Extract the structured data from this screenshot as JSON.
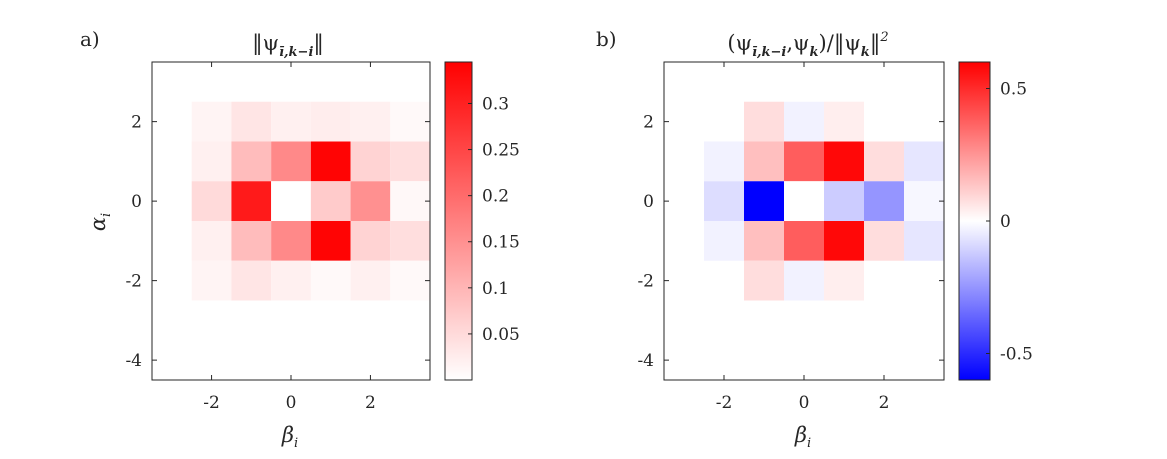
{
  "panels": {
    "a": {
      "label": "a)",
      "title": "‖ψ",
      "title_sub": "ī,k−i",
      "title_end": "‖",
      "xlabel": "β",
      "xlabel_sub": "i",
      "ylabel": "α",
      "ylabel_sub": "i"
    },
    "b": {
      "label": "b)",
      "title_open": "(ψ",
      "title_sub1": "ī,k−i",
      "title_mid": ",ψ",
      "title_sub2": "k",
      "title_mid2": ")/‖ψ",
      "title_sub3": "k",
      "title_end": "‖",
      "title_sup": "2",
      "xlabel": "β",
      "xlabel_sub": "i"
    }
  },
  "chart_data": [
    {
      "id": "a",
      "type": "heatmap",
      "title": "‖ψ_{ī,k−i}‖",
      "xlabel": "β_i",
      "ylabel": "α_i",
      "xlim": [
        -3.5,
        3.5
      ],
      "ylim": [
        -4.5,
        3.5
      ],
      "xticks": [
        -2,
        0,
        2
      ],
      "yticks": [
        -4,
        -2,
        0,
        2
      ],
      "x_centers": [
        -2,
        -1,
        0,
        1,
        2,
        3
      ],
      "y_centers": [
        2,
        1,
        0,
        -1,
        -2
      ],
      "z": [
        [
          0.015,
          0.035,
          0.02,
          0.025,
          0.02,
          0.008
        ],
        [
          0.02,
          0.09,
          0.16,
          0.34,
          0.06,
          0.045
        ],
        [
          0.05,
          0.31,
          0.0,
          0.07,
          0.15,
          0.01
        ],
        [
          0.02,
          0.09,
          0.16,
          0.34,
          0.06,
          0.045
        ],
        [
          0.015,
          0.035,
          0.02,
          0.008,
          0.02,
          0.008
        ]
      ],
      "colorbar": {
        "min": 0.0,
        "max": 0.345,
        "ticks": [
          0.05,
          0.1,
          0.15,
          0.2,
          0.25,
          0.3
        ],
        "tick_labels": [
          "0.05",
          "0.1",
          "0.15",
          "0.2",
          "0.25",
          "0.3"
        ],
        "colormap": "white-red"
      }
    },
    {
      "id": "b",
      "type": "heatmap",
      "title": "(ψ_{ī,k−i},ψ_k)/‖ψ_k‖^2",
      "xlabel": "β_i",
      "ylabel": "",
      "xlim": [
        -3.5,
        3.5
      ],
      "ylim": [
        -4.5,
        3.5
      ],
      "xticks": [
        -2,
        0,
        2
      ],
      "yticks": [
        -4,
        -2,
        0,
        2
      ],
      "x_centers": [
        -2,
        -1,
        0,
        1,
        2,
        3
      ],
      "y_centers": [
        2,
        1,
        0,
        -1,
        -2
      ],
      "z": [
        [
          null,
          0.08,
          -0.03,
          0.04,
          null,
          null
        ],
        [
          -0.03,
          0.15,
          0.38,
          0.58,
          0.08,
          -0.06
        ],
        [
          -0.08,
          -0.6,
          0.0,
          -0.12,
          -0.25,
          -0.02
        ],
        [
          -0.03,
          0.15,
          0.38,
          0.58,
          0.08,
          -0.06
        ],
        [
          null,
          0.08,
          -0.03,
          0.04,
          null,
          null
        ]
      ],
      "colorbar": {
        "min": -0.6,
        "max": 0.6,
        "ticks": [
          -0.5,
          0,
          0.5
        ],
        "tick_labels": [
          "-0.5",
          "0",
          "0.5"
        ],
        "colormap": "blue-white-red"
      }
    }
  ]
}
